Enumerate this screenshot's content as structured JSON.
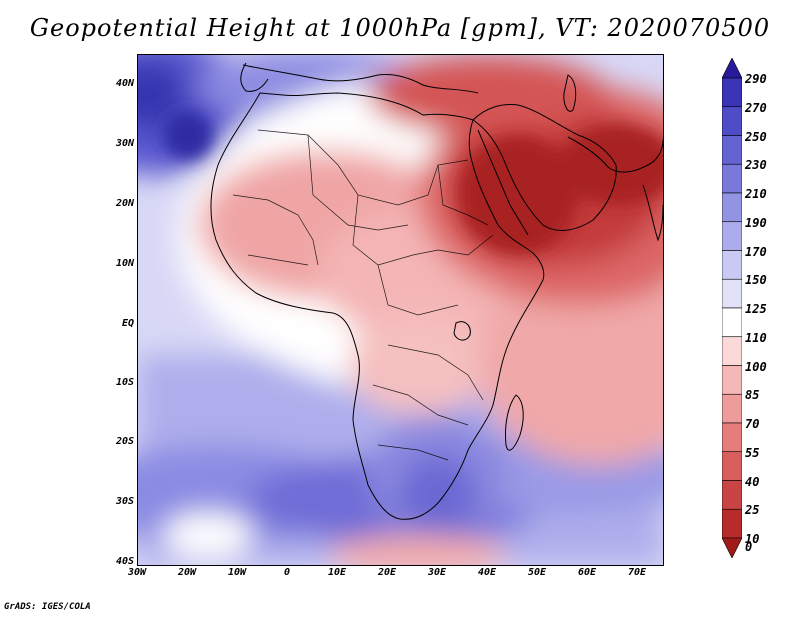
{
  "title": "Geopotential Height at 1000hPa [gpm], VT: 2020070500",
  "axes": {
    "lat_labels": [
      "40N",
      "30N",
      "20N",
      "10N",
      "EQ",
      "10S",
      "20S",
      "30S",
      "40S"
    ],
    "lon_labels": [
      "30W",
      "20W",
      "10W",
      "0",
      "10E",
      "20E",
      "30E",
      "40E",
      "50E",
      "60E",
      "70E"
    ]
  },
  "colorbar": {
    "labels": [
      "290",
      "270",
      "250",
      "230",
      "210",
      "190",
      "170",
      "150",
      "125",
      "110",
      "100",
      "85",
      "70",
      "55",
      "40",
      "25",
      "10",
      "0"
    ],
    "colors": [
      "#2a1a9a",
      "#3a34b6",
      "#4f4cc8",
      "#6563d2",
      "#7a79db",
      "#9393e4",
      "#acacec",
      "#c9c9f3",
      "#e1e1f8",
      "#ffffff",
      "#fbd9d9",
      "#f5b8b8",
      "#ee9b9b",
      "#e67d7d",
      "#d95f5f",
      "#c94444",
      "#b72b2b",
      "#a11a1a"
    ]
  },
  "footer": "GrADS: IGES/COLA"
}
